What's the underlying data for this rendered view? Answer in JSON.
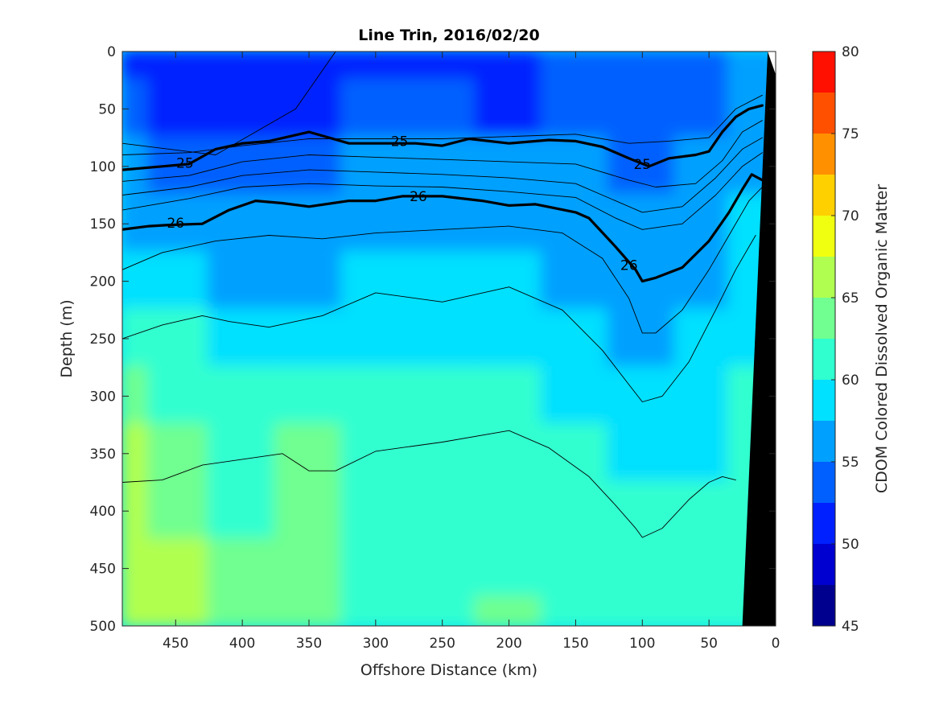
{
  "chart_data": {
    "type": "heatmap",
    "title": "Line Trin, 2016/02/20",
    "xlabel": "Offshore Distance (km)",
    "ylabel": "Depth (m)",
    "colorbar_label": "CDOM Colored Dissolved Organic Matter",
    "xlim": [
      490,
      0
    ],
    "ylim": [
      0,
      500
    ],
    "x_reversed": true,
    "y_reversed": true,
    "x_ticks": [
      450,
      400,
      350,
      300,
      250,
      200,
      150,
      100,
      50,
      0
    ],
    "y_ticks": [
      0,
      50,
      100,
      150,
      200,
      250,
      300,
      350,
      400,
      450,
      500
    ],
    "colorbar_ticks": [
      45,
      50,
      55,
      60,
      65,
      70,
      75,
      80
    ],
    "clim": [
      45,
      80
    ],
    "colorbar_levels": [
      45,
      47.5,
      50,
      52.5,
      55,
      57.5,
      60,
      62.5,
      65,
      67.5,
      70,
      72.5,
      75,
      77.5,
      80
    ],
    "colormap": [
      "#00008f",
      "#0000d0",
      "#0020ff",
      "#0060ff",
      "#00a0ff",
      "#00e0ff",
      "#30ffd0",
      "#70ff90",
      "#b0ff50",
      "#f0ff10",
      "#ffd000",
      "#ff9000",
      "#ff5000",
      "#ff1000",
      "#cf0000"
    ],
    "field_summary": {
      "x": [
        490,
        450,
        400,
        350,
        300,
        250,
        200,
        150,
        100,
        50,
        20
      ],
      "depth": [
        0,
        50,
        100,
        150,
        200,
        250,
        300,
        350,
        400,
        450,
        500
      ],
      "cdom": [
        [
          50,
          50,
          51,
          51,
          52,
          52,
          51,
          53,
          53,
          54,
          55
        ],
        [
          54,
          52,
          52,
          52,
          53,
          53,
          52,
          53,
          53,
          54,
          56
        ],
        [
          56,
          54,
          54,
          54,
          55,
          55,
          55,
          55,
          53,
          55,
          57
        ],
        [
          57,
          56,
          56,
          56,
          56,
          57,
          57,
          56,
          55,
          56,
          58
        ],
        [
          59,
          58,
          57,
          57,
          58,
          58,
          58,
          57,
          56,
          57,
          59
        ],
        [
          62,
          60,
          59,
          59,
          59,
          59,
          59,
          58,
          57,
          58,
          59
        ],
        [
          64,
          62,
          61,
          61,
          60,
          60,
          60,
          59,
          58,
          59,
          60
        ],
        [
          66,
          63,
          62,
          63,
          61,
          61,
          60,
          60,
          59,
          59,
          60
        ],
        [
          67,
          64,
          62,
          63,
          62,
          62,
          61,
          61,
          60,
          60,
          61
        ],
        [
          67,
          65,
          63,
          63,
          62,
          62,
          62,
          61,
          61,
          61,
          61
        ],
        [
          67,
          65,
          63,
          64,
          62,
          62,
          63,
          62,
          61,
          61,
          61
        ]
      ]
    },
    "density_contours": [
      {
        "level": "24.5",
        "labeled": false,
        "bold": false,
        "points": [
          [
            330,
            0
          ],
          [
            360,
            50
          ],
          [
            420,
            90
          ],
          [
            490,
            80
          ]
        ]
      },
      {
        "level": "25",
        "labeled": true,
        "bold": true,
        "labels": [
          {
            "text": "25",
            "x": 443,
            "depth": 97
          },
          {
            "text": "25",
            "x": 282,
            "depth": 78
          },
          {
            "text": "25",
            "x": 100,
            "depth": 98
          }
        ],
        "points": [
          [
            490,
            103
          ],
          [
            460,
            100
          ],
          [
            440,
            98
          ],
          [
            420,
            85
          ],
          [
            400,
            80
          ],
          [
            380,
            78
          ],
          [
            350,
            70
          ],
          [
            320,
            80
          ],
          [
            300,
            80
          ],
          [
            270,
            80
          ],
          [
            250,
            82
          ],
          [
            230,
            76
          ],
          [
            200,
            80
          ],
          [
            170,
            77
          ],
          [
            150,
            78
          ],
          [
            130,
            83
          ],
          [
            110,
            93
          ],
          [
            95,
            100
          ],
          [
            80,
            93
          ],
          [
            60,
            90
          ],
          [
            50,
            87
          ],
          [
            40,
            70
          ],
          [
            30,
            57
          ],
          [
            20,
            50
          ],
          [
            10,
            47
          ]
        ]
      },
      {
        "level": "26",
        "labeled": true,
        "bold": true,
        "labels": [
          {
            "text": "26",
            "x": 450,
            "depth": 149
          },
          {
            "text": "26",
            "x": 268,
            "depth": 126
          },
          {
            "text": "26",
            "x": 110,
            "depth": 186
          }
        ],
        "points": [
          [
            490,
            155
          ],
          [
            470,
            152
          ],
          [
            455,
            151
          ],
          [
            430,
            150
          ],
          [
            410,
            138
          ],
          [
            390,
            130
          ],
          [
            370,
            132
          ],
          [
            350,
            135
          ],
          [
            320,
            130
          ],
          [
            300,
            130
          ],
          [
            280,
            126
          ],
          [
            250,
            126
          ],
          [
            220,
            130
          ],
          [
            200,
            134
          ],
          [
            180,
            133
          ],
          [
            150,
            140
          ],
          [
            140,
            145
          ],
          [
            120,
            170
          ],
          [
            105,
            190
          ],
          [
            100,
            200
          ],
          [
            90,
            197
          ],
          [
            70,
            188
          ],
          [
            50,
            165
          ],
          [
            35,
            140
          ],
          [
            25,
            120
          ],
          [
            18,
            107
          ],
          [
            10,
            112
          ]
        ]
      },
      {
        "level": "25.2",
        "labeled": false,
        "bold": false,
        "points": [
          [
            490,
            90
          ],
          [
            440,
            88
          ],
          [
            400,
            82
          ],
          [
            350,
            76
          ],
          [
            300,
            76
          ],
          [
            250,
            76
          ],
          [
            200,
            74
          ],
          [
            150,
            72
          ],
          [
            110,
            80
          ],
          [
            80,
            78
          ],
          [
            50,
            75
          ],
          [
            30,
            50
          ],
          [
            10,
            38
          ]
        ]
      },
      {
        "level": "25.4",
        "labeled": false,
        "bold": false,
        "points": [
          [
            490,
            113
          ],
          [
            440,
            108
          ],
          [
            400,
            96
          ],
          [
            350,
            90
          ],
          [
            300,
            92
          ],
          [
            250,
            94
          ],
          [
            200,
            96
          ],
          [
            150,
            98
          ],
          [
            110,
            112
          ],
          [
            90,
            118
          ],
          [
            60,
            115
          ],
          [
            40,
            95
          ],
          [
            25,
            70
          ],
          [
            10,
            60
          ]
        ]
      },
      {
        "level": "25.6",
        "labeled": false,
        "bold": false,
        "points": [
          [
            490,
            125
          ],
          [
            440,
            118
          ],
          [
            400,
            108
          ],
          [
            350,
            103
          ],
          [
            300,
            105
          ],
          [
            250,
            107
          ],
          [
            200,
            110
          ],
          [
            150,
            115
          ],
          [
            120,
            130
          ],
          [
            100,
            140
          ],
          [
            70,
            135
          ],
          [
            45,
            110
          ],
          [
            25,
            85
          ],
          [
            10,
            75
          ]
        ]
      },
      {
        "level": "25.8",
        "labeled": false,
        "bold": false,
        "points": [
          [
            490,
            138
          ],
          [
            440,
            128
          ],
          [
            400,
            118
          ],
          [
            350,
            115
          ],
          [
            300,
            117
          ],
          [
            250,
            118
          ],
          [
            200,
            122
          ],
          [
            150,
            127
          ],
          [
            120,
            145
          ],
          [
            100,
            155
          ],
          [
            70,
            150
          ],
          [
            45,
            125
          ],
          [
            25,
            100
          ],
          [
            10,
            88
          ]
        ]
      },
      {
        "level": "26.2",
        "labeled": false,
        "bold": false,
        "points": [
          [
            490,
            190
          ],
          [
            460,
            175
          ],
          [
            420,
            165
          ],
          [
            380,
            160
          ],
          [
            340,
            163
          ],
          [
            300,
            158
          ],
          [
            250,
            155
          ],
          [
            200,
            152
          ],
          [
            160,
            158
          ],
          [
            130,
            180
          ],
          [
            110,
            215
          ],
          [
            100,
            245
          ],
          [
            90,
            245
          ],
          [
            70,
            225
          ],
          [
            50,
            190
          ],
          [
            35,
            160
          ],
          [
            20,
            130
          ],
          [
            10,
            118
          ]
        ]
      },
      {
        "level": "26.4",
        "labeled": false,
        "bold": false,
        "points": [
          [
            490,
            250
          ],
          [
            460,
            238
          ],
          [
            430,
            230
          ],
          [
            410,
            235
          ],
          [
            380,
            240
          ],
          [
            340,
            230
          ],
          [
            300,
            210
          ],
          [
            250,
            218
          ],
          [
            200,
            205
          ],
          [
            160,
            225
          ],
          [
            130,
            260
          ],
          [
            110,
            290
          ],
          [
            100,
            305
          ],
          [
            85,
            300
          ],
          [
            65,
            270
          ],
          [
            45,
            225
          ],
          [
            30,
            190
          ],
          [
            15,
            160
          ]
        ]
      },
      {
        "level": "26.6",
        "labeled": false,
        "bold": false,
        "points": [
          [
            490,
            375
          ],
          [
            460,
            373
          ],
          [
            430,
            360
          ],
          [
            400,
            355
          ],
          [
            370,
            350
          ],
          [
            350,
            365
          ],
          [
            330,
            365
          ],
          [
            300,
            348
          ],
          [
            250,
            340
          ],
          [
            200,
            330
          ],
          [
            170,
            345
          ],
          [
            140,
            370
          ],
          [
            120,
            395
          ],
          [
            105,
            415
          ],
          [
            100,
            423
          ],
          [
            85,
            415
          ],
          [
            65,
            390
          ],
          [
            50,
            375
          ],
          [
            40,
            370
          ],
          [
            30,
            373
          ]
        ]
      }
    ],
    "bathymetry": {
      "color": "#000000",
      "points": [
        [
          6,
          0
        ],
        [
          25,
          500
        ],
        [
          0,
          500
        ],
        [
          0,
          0
        ]
      ]
    }
  }
}
